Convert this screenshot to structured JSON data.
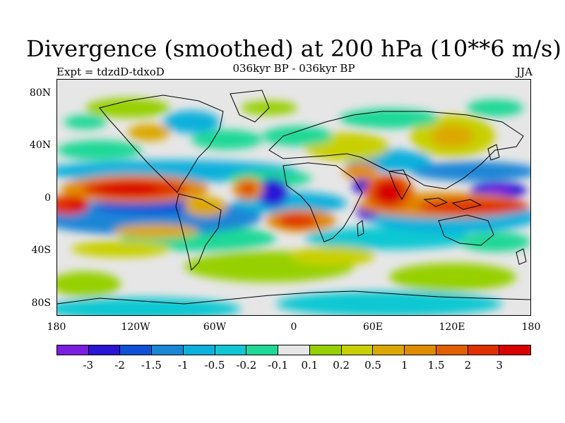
{
  "header": {
    "title": "Divergence (smoothed) at 200 hPa (10**6 m/s)",
    "subtitle": "036kyr BP - 036kyr BP",
    "expt": "Expt = tdzdD-tdxoD",
    "season": "JJA"
  },
  "axes": {
    "lat_labels": [
      "80N",
      "40N",
      "0",
      "40S",
      "80S"
    ],
    "lon_labels": [
      "180",
      "120W",
      "60W",
      "0",
      "60E",
      "120E",
      "180"
    ]
  },
  "colorbar": {
    "colors": [
      "#7a1ee0",
      "#2a14d6",
      "#1050d6",
      "#1a86d6",
      "#0cb0dc",
      "#10c8d2",
      "#1ed896",
      "#e6e6e6",
      "#96d000",
      "#c8d000",
      "#dca800",
      "#e08c00",
      "#e06000",
      "#e03000",
      "#d80000"
    ],
    "labels": [
      "-3",
      "-2",
      "-1.5",
      "-1",
      "-0.5",
      "-0.2",
      "-0.1",
      "0.1",
      "0.2",
      "0.5",
      "1",
      "1.5",
      "2",
      "3"
    ]
  },
  "map": {
    "description_key": "divergence-field",
    "coastline_color": "#000000"
  }
}
